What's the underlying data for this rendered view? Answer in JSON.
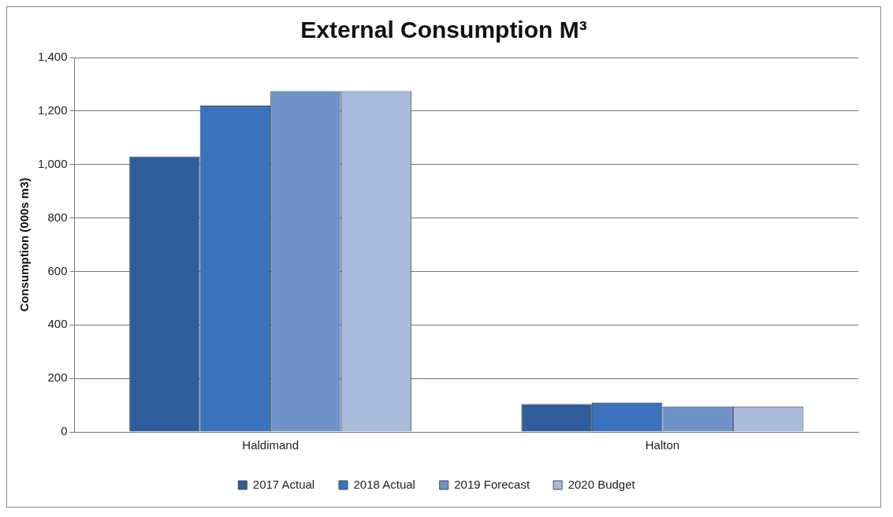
{
  "chart_data": {
    "type": "bar",
    "title": "External Consumption M³",
    "ylabel": "Consumption (000s m3)",
    "categories": [
      "Haldimand",
      "Halton"
    ],
    "series": [
      {
        "name": "2017 Actual",
        "color": "#2f5c9a",
        "values": [
          1030,
          105
        ]
      },
      {
        "name": "2018 Actual",
        "color": "#3a72bd",
        "values": [
          1220,
          110
        ]
      },
      {
        "name": "2019 Forecast",
        "color": "#6f93c8",
        "values": [
          1275,
          95
        ]
      },
      {
        "name": "2020 Budget",
        "color": "#a9bbdb",
        "values": [
          1275,
          95
        ]
      }
    ],
    "ylim": [
      0,
      1400
    ],
    "yticks": [
      0,
      200,
      400,
      600,
      800,
      {
        "value": 1000,
        "label": "1,000"
      },
      {
        "value": 1200,
        "label": "1,200"
      },
      {
        "value": 1400,
        "label": "1,400"
      }
    ],
    "grid": "y",
    "legend": "bottom"
  }
}
